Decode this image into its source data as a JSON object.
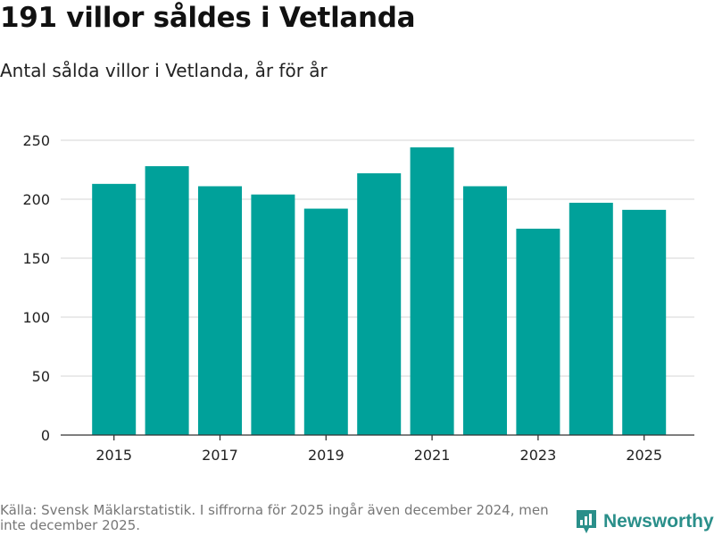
{
  "header": {
    "title": "191 villor såldes i Vetlanda",
    "subtitle": "Antal sålda villor i Vetlanda, år för år"
  },
  "chart_data": {
    "type": "bar",
    "categories": [
      "2015",
      "2016",
      "2017",
      "2018",
      "2019",
      "2020",
      "2021",
      "2022",
      "2023",
      "2024",
      "2025"
    ],
    "values": [
      213,
      228,
      211,
      204,
      192,
      222,
      244,
      211,
      175,
      197,
      191
    ],
    "x_tick_labels": [
      "2015",
      "2017",
      "2019",
      "2021",
      "2023",
      "2025"
    ],
    "y_ticks": [
      0,
      50,
      100,
      150,
      200,
      250
    ],
    "ylim": [
      0,
      260
    ],
    "xlabel": "",
    "ylabel": "",
    "grid": true,
    "bar_color": "#00a19a",
    "grid_color": "#dddddd",
    "axis_color": "#333333"
  },
  "footer": {
    "source": "Källa: Svensk Mäklarstatistik. I siffrorna för 2025 ingår även december 2024, men inte december 2025.",
    "brand": "Newsworthy",
    "brand_color": "#2a8f8a"
  }
}
